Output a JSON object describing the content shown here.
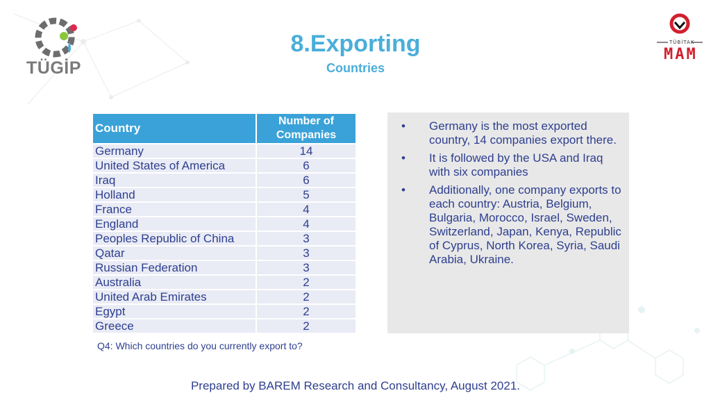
{
  "logos": {
    "left_text": "TÜGİP",
    "right_top": "TÜBİTAK",
    "right_main": "MAM"
  },
  "header": {
    "title": "8.Exporting",
    "subtitle": "Countries"
  },
  "table": {
    "headers": [
      "Country",
      "Number of Companies"
    ],
    "rows": [
      {
        "country": "Germany",
        "count": "14"
      },
      {
        "country": "United States of America",
        "count": "6"
      },
      {
        "country": "Iraq",
        "count": "6"
      },
      {
        "country": "Holland",
        "count": "5"
      },
      {
        "country": "France",
        "count": "4"
      },
      {
        "country": "England",
        "count": "4"
      },
      {
        "country": "Peoples Republic of China",
        "count": "3"
      },
      {
        "country": "Qatar",
        "count": "3"
      },
      {
        "country": "Russian Federation",
        "count": "3"
      },
      {
        "country": "Australia",
        "count": "2"
      },
      {
        "country": "United Arab Emirates",
        "count": "2"
      },
      {
        "country": "Egypt",
        "count": "2"
      },
      {
        "country": "Greece",
        "count": "2"
      }
    ]
  },
  "question_note": "Q4: Which countries do you currently export to?",
  "summary": {
    "bullets": [
      "Germany is the most exported country, 14 companies export there.",
      "It is followed by the USA and Iraq with six companies",
      "Additionally, one company exports to each country: Austria, Belgium, Bulgaria, Morocco, Israel, Sweden, Switzerland, Japan, Kenya, Republic of Cyprus, North Korea, Syria, Saudi Arabia, Ukraine."
    ]
  },
  "footer": "Prepared by BAREM Research and Consultancy, August 2021."
}
